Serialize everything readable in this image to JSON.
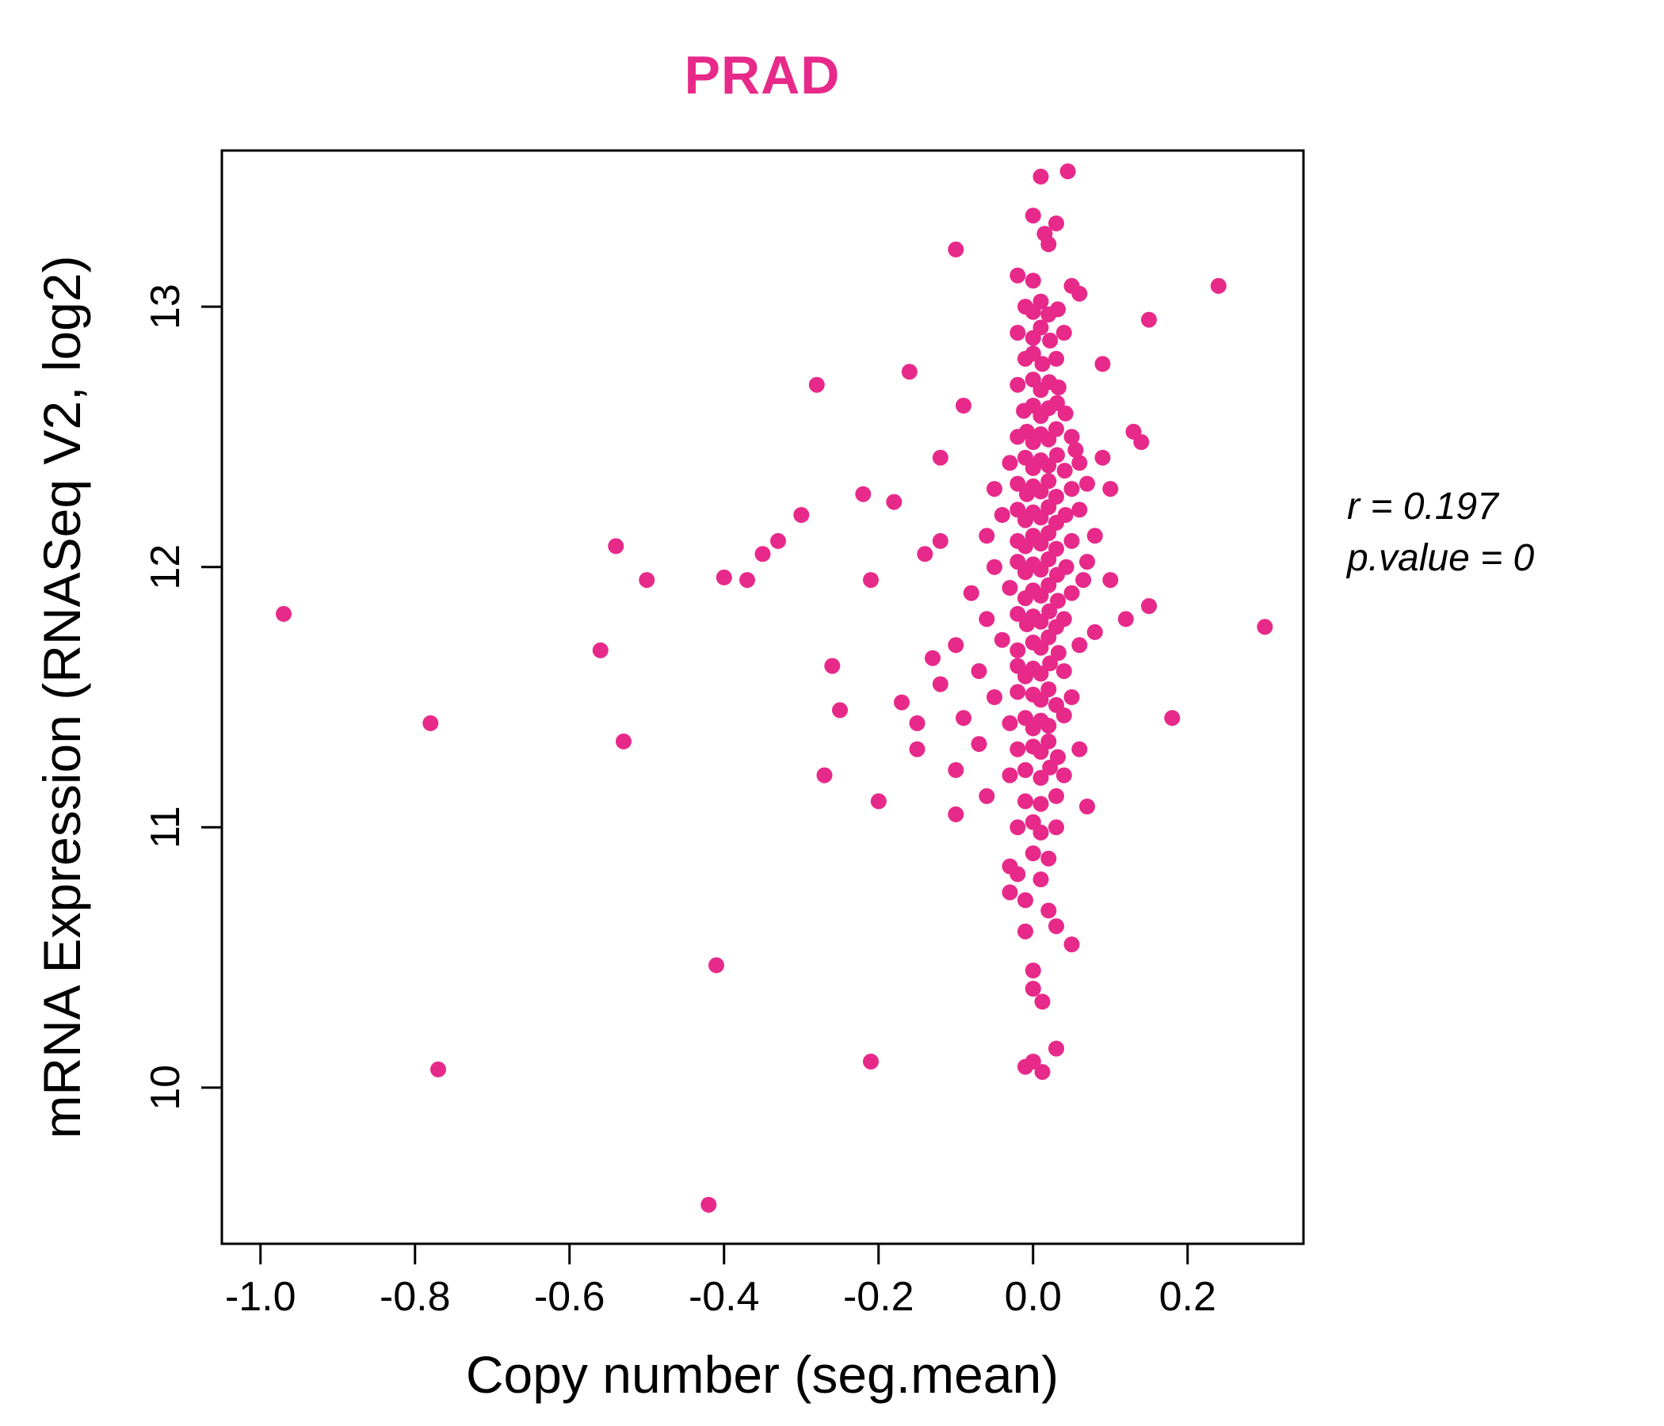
{
  "title": "PRAD",
  "accent_color": "#E7298A",
  "annotation": {
    "line1": "r = 0.197",
    "line2": "p.value = 0"
  },
  "chart_data": {
    "type": "scatter",
    "title": "PRAD",
    "xlabel": "Copy number (seg.mean)",
    "ylabel": "mRNA Expression (RNASeq V2, log2)",
    "xlim": [
      -1.05,
      0.35
    ],
    "ylim": [
      9.4,
      13.6
    ],
    "x_ticks": [
      -1.0,
      -0.8,
      -0.6,
      -0.4,
      -0.2,
      0.0,
      0.2
    ],
    "x_tick_labels": [
      "-1.0",
      "-0.8",
      "-0.6",
      "-0.4",
      "-0.2",
      "0.0",
      "0.2"
    ],
    "y_ticks": [
      10,
      11,
      12,
      13
    ],
    "y_tick_labels": [
      "10",
      "11",
      "12",
      "13"
    ],
    "point_color": "#E7298A",
    "grid": false,
    "legend": "none",
    "correlation_r": 0.197,
    "p_value": 0,
    "points": [
      [
        -0.97,
        11.82
      ],
      [
        -0.78,
        11.4
      ],
      [
        -0.77,
        10.07
      ],
      [
        -0.56,
        11.68
      ],
      [
        -0.54,
        12.08
      ],
      [
        -0.53,
        11.33
      ],
      [
        -0.5,
        11.95
      ],
      [
        -0.42,
        9.55
      ],
      [
        -0.41,
        10.47
      ],
      [
        -0.4,
        11.96
      ],
      [
        -0.37,
        11.95
      ],
      [
        -0.35,
        12.05
      ],
      [
        -0.33,
        12.1
      ],
      [
        -0.3,
        12.2
      ],
      [
        -0.28,
        12.7
      ],
      [
        -0.27,
        11.2
      ],
      [
        -0.26,
        11.62
      ],
      [
        -0.25,
        11.45
      ],
      [
        -0.22,
        12.28
      ],
      [
        -0.21,
        11.95
      ],
      [
        -0.21,
        10.1
      ],
      [
        -0.2,
        11.1
      ],
      [
        -0.18,
        12.25
      ],
      [
        -0.17,
        11.48
      ],
      [
        -0.16,
        12.75
      ],
      [
        -0.15,
        11.4
      ],
      [
        -0.15,
        11.3
      ],
      [
        -0.14,
        12.05
      ],
      [
        -0.13,
        11.65
      ],
      [
        -0.12,
        12.42
      ],
      [
        -0.12,
        11.55
      ],
      [
        -0.12,
        12.1
      ],
      [
        -0.1,
        13.22
      ],
      [
        -0.1,
        11.7
      ],
      [
        -0.1,
        11.22
      ],
      [
        -0.1,
        11.05
      ],
      [
        -0.09,
        12.62
      ],
      [
        -0.09,
        11.42
      ],
      [
        -0.08,
        11.9
      ],
      [
        0.09,
        12.78
      ],
      [
        0.09,
        12.42
      ],
      [
        0.1,
        12.3
      ],
      [
        0.1,
        11.95
      ],
      [
        0.12,
        11.8
      ],
      [
        0.13,
        12.52
      ],
      [
        0.14,
        12.48
      ],
      [
        0.15,
        12.95
      ],
      [
        0.15,
        11.85
      ],
      [
        0.18,
        11.42
      ],
      [
        0.24,
        13.08
      ],
      [
        0.3,
        11.77
      ],
      [
        0.08,
        11.75
      ],
      [
        0.065,
        11.95
      ],
      [
        0.055,
        12.45
      ],
      [
        0.01,
        13.5
      ],
      [
        0.045,
        13.52
      ],
      [
        0.0,
        13.35
      ],
      [
        0.03,
        13.32
      ],
      [
        0.015,
        13.28
      ],
      [
        0.02,
        13.24
      ],
      [
        -0.02,
        13.12
      ],
      [
        0.0,
        13.1
      ],
      [
        0.05,
        13.08
      ],
      [
        0.06,
        13.05
      ],
      [
        -0.01,
        13.0
      ],
      [
        0.0,
        12.98
      ],
      [
        0.01,
        13.02
      ],
      [
        0.02,
        12.97
      ],
      [
        0.032,
        12.99
      ],
      [
        -0.02,
        12.9
      ],
      [
        0.0,
        12.88
      ],
      [
        0.01,
        12.92
      ],
      [
        0.022,
        12.87
      ],
      [
        0.04,
        12.9
      ],
      [
        -0.01,
        12.8
      ],
      [
        0.0,
        12.82
      ],
      [
        0.012,
        12.78
      ],
      [
        0.03,
        12.8
      ],
      [
        -0.02,
        12.7
      ],
      [
        0.0,
        12.72
      ],
      [
        0.01,
        12.68
      ],
      [
        0.021,
        12.71
      ],
      [
        0.033,
        12.69
      ],
      [
        -0.012,
        12.6
      ],
      [
        0.0,
        12.62
      ],
      [
        0.01,
        12.58
      ],
      [
        0.02,
        12.61
      ],
      [
        0.031,
        12.63
      ],
      [
        0.042,
        12.59
      ],
      [
        -0.02,
        12.5
      ],
      [
        -0.008,
        12.52
      ],
      [
        0.0,
        12.48
      ],
      [
        0.01,
        12.51
      ],
      [
        0.02,
        12.49
      ],
      [
        0.03,
        12.53
      ],
      [
        0.05,
        12.5
      ],
      [
        -0.03,
        12.4
      ],
      [
        -0.01,
        12.42
      ],
      [
        0.0,
        12.38
      ],
      [
        0.01,
        12.41
      ],
      [
        0.02,
        12.39
      ],
      [
        0.031,
        12.43
      ],
      [
        0.041,
        12.37
      ],
      [
        0.06,
        12.4
      ],
      [
        -0.05,
        12.3
      ],
      [
        -0.02,
        12.32
      ],
      [
        -0.008,
        12.28
      ],
      [
        0.0,
        12.31
      ],
      [
        0.01,
        12.29
      ],
      [
        0.02,
        12.33
      ],
      [
        0.03,
        12.27
      ],
      [
        0.05,
        12.3
      ],
      [
        0.07,
        12.32
      ],
      [
        -0.04,
        12.2
      ],
      [
        -0.02,
        12.22
      ],
      [
        -0.01,
        12.18
      ],
      [
        0.0,
        12.21
      ],
      [
        0.01,
        12.19
      ],
      [
        0.02,
        12.23
      ],
      [
        0.03,
        12.17
      ],
      [
        0.042,
        12.2
      ],
      [
        0.06,
        12.22
      ],
      [
        -0.06,
        12.12
      ],
      [
        -0.02,
        12.1
      ],
      [
        -0.01,
        12.08
      ],
      [
        0.0,
        12.12
      ],
      [
        0.01,
        12.09
      ],
      [
        0.02,
        12.13
      ],
      [
        0.03,
        12.07
      ],
      [
        0.05,
        12.1
      ],
      [
        0.08,
        12.12
      ],
      [
        -0.05,
        12.0
      ],
      [
        -0.02,
        12.02
      ],
      [
        -0.01,
        11.98
      ],
      [
        0.0,
        12.01
      ],
      [
        0.01,
        11.99
      ],
      [
        0.02,
        12.03
      ],
      [
        0.031,
        11.97
      ],
      [
        0.043,
        12.0
      ],
      [
        0.07,
        12.02
      ],
      [
        -0.03,
        11.92
      ],
      [
        -0.01,
        11.88
      ],
      [
        0.0,
        11.91
      ],
      [
        0.01,
        11.89
      ],
      [
        0.02,
        11.93
      ],
      [
        0.032,
        11.87
      ],
      [
        0.05,
        11.9
      ],
      [
        -0.06,
        11.8
      ],
      [
        -0.02,
        11.82
      ],
      [
        -0.008,
        11.78
      ],
      [
        0.0,
        11.81
      ],
      [
        0.01,
        11.79
      ],
      [
        0.021,
        11.83
      ],
      [
        0.03,
        11.77
      ],
      [
        0.04,
        11.8
      ],
      [
        -0.04,
        11.72
      ],
      [
        -0.02,
        11.68
      ],
      [
        0.0,
        11.71
      ],
      [
        0.01,
        11.69
      ],
      [
        0.02,
        11.73
      ],
      [
        0.033,
        11.67
      ],
      [
        0.06,
        11.7
      ],
      [
        -0.07,
        11.6
      ],
      [
        -0.02,
        11.62
      ],
      [
        -0.01,
        11.58
      ],
      [
        0.0,
        11.61
      ],
      [
        0.01,
        11.59
      ],
      [
        0.022,
        11.63
      ],
      [
        0.04,
        11.6
      ],
      [
        -0.05,
        11.5
      ],
      [
        -0.02,
        11.52
      ],
      [
        0.0,
        11.51
      ],
      [
        0.01,
        11.49
      ],
      [
        0.02,
        11.53
      ],
      [
        0.03,
        11.47
      ],
      [
        0.05,
        11.5
      ],
      [
        -0.03,
        11.4
      ],
      [
        -0.01,
        11.42
      ],
      [
        0.0,
        11.38
      ],
      [
        0.01,
        11.41
      ],
      [
        0.02,
        11.39
      ],
      [
        0.04,
        11.43
      ],
      [
        -0.07,
        11.32
      ],
      [
        -0.02,
        11.3
      ],
      [
        0.0,
        11.31
      ],
      [
        0.01,
        11.29
      ],
      [
        0.02,
        11.33
      ],
      [
        0.032,
        11.27
      ],
      [
        0.06,
        11.3
      ],
      [
        -0.03,
        11.2
      ],
      [
        -0.01,
        11.22
      ],
      [
        0.01,
        11.19
      ],
      [
        0.022,
        11.23
      ],
      [
        0.04,
        11.2
      ],
      [
        -0.06,
        11.12
      ],
      [
        -0.01,
        11.1
      ],
      [
        0.01,
        11.09
      ],
      [
        0.03,
        11.12
      ],
      [
        0.07,
        11.08
      ],
      [
        -0.02,
        11.0
      ],
      [
        0.0,
        11.02
      ],
      [
        0.01,
        10.98
      ],
      [
        0.03,
        11.0
      ],
      [
        0.0,
        10.9
      ],
      [
        0.02,
        10.88
      ],
      [
        -0.03,
        10.85
      ],
      [
        -0.02,
        10.82
      ],
      [
        0.01,
        10.8
      ],
      [
        -0.01,
        10.72
      ],
      [
        0.02,
        10.68
      ],
      [
        -0.03,
        10.75
      ],
      [
        -0.01,
        10.6
      ],
      [
        0.03,
        10.62
      ],
      [
        0.05,
        10.55
      ],
      [
        0.0,
        10.45
      ],
      [
        0.0,
        10.38
      ],
      [
        0.012,
        10.33
      ],
      [
        0.03,
        10.15
      ],
      [
        -0.01,
        10.08
      ],
      [
        0.0,
        10.1
      ],
      [
        0.012,
        10.06
      ]
    ]
  }
}
